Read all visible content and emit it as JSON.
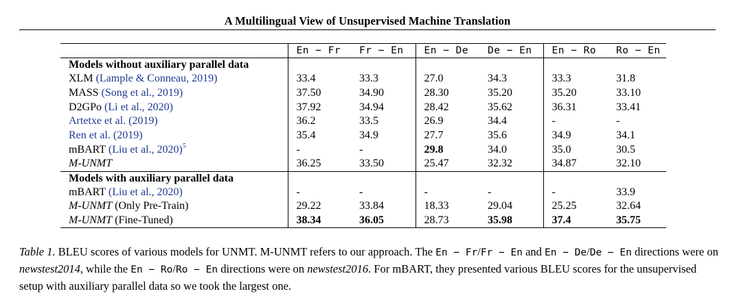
{
  "running_head": "A Multilingual View of Unsupervised Machine Translation",
  "table": {
    "columns": [
      "En − Fr",
      "Fr − En",
      "En − De",
      "De − En",
      "En − Ro",
      "Ro − En"
    ],
    "section1_title": "Models without auxiliary parallel data",
    "section1_rows": [
      {
        "model": "XLM",
        "cite": "(Lample & Conneau, 2019)",
        "values": [
          "33.4",
          "33.3",
          "27.0",
          "34.3",
          "33.3",
          "31.8"
        ]
      },
      {
        "model": "MASS",
        "cite": "(Song et al., 2019)",
        "values": [
          "37.50",
          "34.90",
          "28.30",
          "35.20",
          "35.20",
          "33.10"
        ]
      },
      {
        "model": "D2GPo",
        "cite": "(Li et al., 2020)",
        "values": [
          "37.92",
          "34.94",
          "28.42",
          "35.62",
          "36.31",
          "33.41"
        ]
      },
      {
        "model": "",
        "cite": "Artetxe et al. (2019)",
        "values": [
          "36.2",
          "33.5",
          "26.9",
          "34.4",
          "-",
          "-"
        ]
      },
      {
        "model": "",
        "cite": "Ren et al. (2019)",
        "values": [
          "35.4",
          "34.9",
          "27.7",
          "35.6",
          "34.9",
          "34.1"
        ]
      },
      {
        "model": "mBART",
        "cite": "(Liu et al., 2020)",
        "sup": "5",
        "values": [
          "-",
          "-",
          "29.8",
          "34.0",
          "35.0",
          "30.5"
        ]
      },
      {
        "model": "M-UNMT",
        "cite": "",
        "values": [
          "36.25",
          "33.50",
          "25.47",
          "32.32",
          "34.87",
          "32.10"
        ]
      }
    ],
    "section2_title": "Models with auxiliary parallel data",
    "section2_rows": [
      {
        "model": "mBART",
        "cite": "(Liu et al., 2020)",
        "suffix": "",
        "values": [
          "-",
          "-",
          "-",
          "-",
          "-",
          "33.9"
        ]
      },
      {
        "model": "M-UNMT",
        "cite": "",
        "suffix": "(Only Pre-Train)",
        "values": [
          "29.22",
          "33.84",
          "18.33",
          "29.04",
          "25.25",
          "32.64"
        ]
      },
      {
        "model": "M-UNMT",
        "cite": "",
        "suffix": "(Fine-Tuned)",
        "values": [
          "38.34",
          "36.05",
          "28.73",
          "35.98",
          "37.4",
          "35.75"
        ]
      }
    ]
  },
  "caption": {
    "label": "Table 1.",
    "text_1": " BLEU scores of various models for UNMT. M-UNMT refers to our approach. The ",
    "dir_1": "En − Fr",
    "slash_1": "/",
    "dir_2": "Fr − En",
    "and_1": " and ",
    "dir_3": "En − De",
    "slash_2": "/",
    "dir_4": "De − En",
    "text_2": " directions were on ",
    "dataset_1": "newstest2014",
    "text_3": ", while the ",
    "dir_5": "En − Ro",
    "slash_3": "/",
    "dir_6": "Ro − En",
    "text_4": " directions were on ",
    "dataset_2": "newstest2016",
    "text_5": ". For mBART, they presented various BLEU scores for the unsupervised setup with auxiliary parallel data so we took the largest one."
  }
}
